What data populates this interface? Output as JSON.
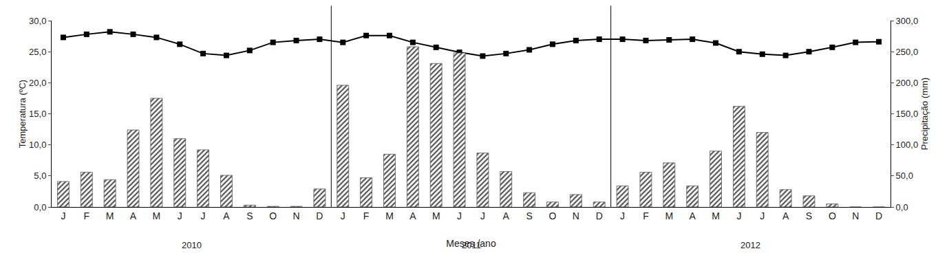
{
  "chart_data": {
    "type": "bar+line",
    "x_label": "Meses /ano",
    "y_label": "Temperatura (ºC)",
    "y2_label": "Precipitação (mm)",
    "categories": [
      "J",
      "F",
      "M",
      "A",
      "M",
      "J",
      "J",
      "A",
      "S",
      "O",
      "N",
      "D",
      "J",
      "F",
      "M",
      "A",
      "M",
      "J",
      "J",
      "A",
      "S",
      "O",
      "N",
      "D",
      "J",
      "F",
      "M",
      "A",
      "M",
      "J",
      "J",
      "A",
      "S",
      "O",
      "N",
      "D"
    ],
    "groups": [
      "2010",
      "2011",
      "2012"
    ],
    "series": [
      {
        "type": "bar",
        "axis": "y2",
        "color": "#555555",
        "values": [
          41,
          56,
          44,
          124,
          175,
          110,
          92,
          51,
          3,
          1,
          1,
          29,
          196,
          47,
          85,
          258,
          231,
          248,
          87,
          57,
          23,
          8,
          20,
          8,
          34,
          56,
          71,
          34,
          90,
          162,
          120,
          28,
          18,
          5,
          0,
          0
        ]
      },
      {
        "type": "line",
        "axis": "y",
        "color": "#000000",
        "marker": "square",
        "values": [
          27.3,
          27.8,
          28.2,
          27.8,
          27.3,
          26.2,
          24.7,
          24.4,
          25.2,
          26.5,
          26.8,
          27.0,
          26.5,
          27.6,
          27.6,
          26.5,
          25.7,
          24.9,
          24.3,
          24.7,
          25.3,
          26.2,
          26.8,
          27.0,
          27.0,
          26.8,
          26.9,
          27.0,
          26.4,
          25.0,
          24.6,
          24.4,
          25.0,
          25.7,
          26.5,
          26.6
        ]
      }
    ],
    "ylim": [
      0,
      30
    ],
    "yticks": [
      {
        "value": 0,
        "label": "0,0"
      },
      {
        "value": 5,
        "label": "5,0"
      },
      {
        "value": 10,
        "label": "10,0"
      },
      {
        "value": 15,
        "label": "15,0"
      },
      {
        "value": 20,
        "label": "20,0"
      },
      {
        "value": 25,
        "label": "25,0"
      },
      {
        "value": 30,
        "label": "30,0"
      }
    ],
    "y2lim": [
      0,
      300
    ],
    "y2ticks": [
      {
        "value": 0,
        "label": "0,0"
      },
      {
        "value": 50,
        "label": "50,0"
      },
      {
        "value": 100,
        "label": "100,0"
      },
      {
        "value": 150,
        "label": "150,0"
      },
      {
        "value": 200,
        "label": "200,0"
      },
      {
        "value": 250,
        "label": "250,0"
      },
      {
        "value": 300,
        "label": "300,0"
      }
    ],
    "grid": false
  }
}
